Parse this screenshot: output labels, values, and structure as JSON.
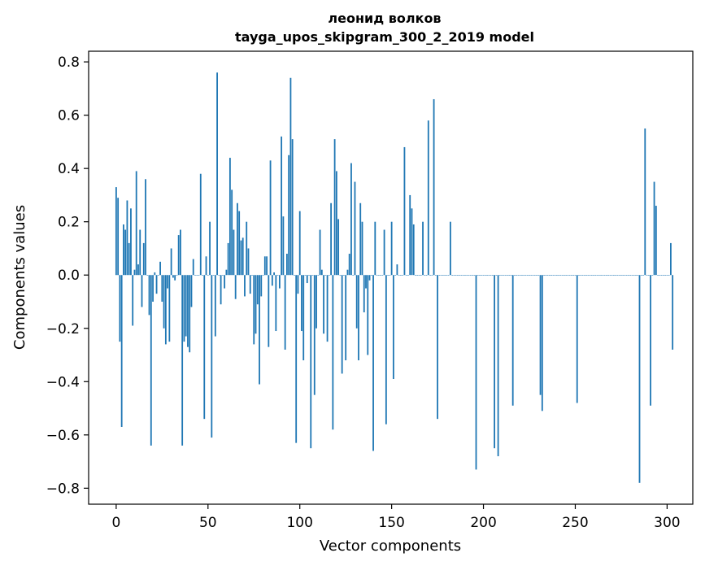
{
  "chart_data": {
    "type": "bar",
    "title": "леонид волков",
    "subtitle": "tayga_upos_skipgram_300_2_2019 model",
    "xlabel": "Vector components",
    "ylabel": "Components values",
    "xlim": [
      -15,
      314
    ],
    "ylim": [
      -0.86,
      0.84
    ],
    "xticks": [
      0,
      50,
      100,
      150,
      200,
      250,
      300
    ],
    "xtick_labels": [
      "0",
      "50",
      "100",
      "150",
      "200",
      "250",
      "300"
    ],
    "yticks": [
      -0.8,
      -0.6,
      -0.4,
      -0.2,
      0.0,
      0.2,
      0.4,
      0.6,
      0.8
    ],
    "ytick_labels": [
      "−0.8",
      "−0.6",
      "−0.4",
      "−0.2",
      "0.0",
      "0.2",
      "0.4",
      "0.6",
      "0.8"
    ],
    "grid": false,
    "bar_color": "#1f77b4",
    "values": [
      0.33,
      0.29,
      -0.25,
      -0.57,
      0.19,
      0.17,
      0.28,
      0.12,
      0.25,
      -0.19,
      0.02,
      0.39,
      0.04,
      0.17,
      -0.12,
      0.12,
      0.36,
      0.0,
      -0.15,
      -0.64,
      -0.1,
      0.01,
      -0.07,
      0.0,
      0.05,
      -0.1,
      -0.2,
      -0.26,
      -0.05,
      -0.25,
      0.1,
      -0.01,
      -0.02,
      0.0,
      0.15,
      0.17,
      -0.64,
      -0.25,
      -0.23,
      -0.27,
      -0.29,
      -0.12,
      0.06,
      0.0,
      0.0,
      0.0,
      0.38,
      0.0,
      -0.54,
      0.07,
      0.0,
      0.2,
      -0.61,
      0.0,
      -0.23,
      0.76,
      0.0,
      -0.11,
      0.0,
      -0.05,
      0.02,
      0.12,
      0.44,
      0.32,
      0.17,
      -0.09,
      0.27,
      0.24,
      0.13,
      0.14,
      -0.08,
      0.2,
      0.1,
      -0.07,
      0.0,
      -0.26,
      -0.22,
      -0.11,
      -0.41,
      -0.08,
      0.0,
      0.07,
      0.07,
      -0.27,
      0.43,
      -0.04,
      0.01,
      -0.21,
      0.0,
      -0.05,
      0.52,
      0.22,
      -0.28,
      0.08,
      0.45,
      0.74,
      0.51,
      0.0,
      -0.63,
      -0.07,
      0.24,
      -0.21,
      -0.32,
      0.0,
      -0.03,
      0.0,
      -0.65,
      0.0,
      -0.45,
      -0.2,
      0.0,
      0.17,
      0.02,
      -0.22,
      0.0,
      -0.25,
      0.0,
      0.27,
      -0.58,
      0.51,
      0.39,
      0.21,
      0.0,
      -0.37,
      0.0,
      -0.32,
      0.02,
      0.08,
      0.42,
      0.0,
      0.35,
      -0.2,
      -0.32,
      0.27,
      0.2,
      -0.14,
      -0.05,
      -0.3,
      -0.02,
      0.0,
      -0.66,
      0.2,
      0.0,
      0.0,
      0.0,
      0.0,
      0.17,
      -0.56,
      0.0,
      0.0,
      0.2,
      -0.39,
      0.0,
      0.04,
      0.0,
      0.0,
      0.0,
      0.48,
      0.0,
      0.0,
      0.3,
      0.25,
      0.19,
      0.0,
      0.0,
      0.0,
      0.0,
      0.2,
      0.0,
      0.0,
      0.58,
      0.0,
      0.0,
      0.66,
      0.0,
      -0.54,
      0.0,
      0.0,
      0.0,
      0.0,
      0.0,
      0.0,
      0.2,
      0.0,
      0.0,
      0.0,
      0.0,
      0.0,
      0.0,
      0.0,
      0.0,
      0.0,
      0.0,
      0.0,
      0.0,
      0.0,
      -0.73,
      0.0,
      0.0,
      0.0,
      0.0,
      0.0,
      0.0,
      0.0,
      0.0,
      0.0,
      -0.65,
      0.0,
      -0.68,
      0.0,
      0.0,
      0.0,
      0.0,
      0.0,
      0.0,
      0.0,
      -0.49,
      0.0,
      0.0,
      0.0,
      0.0,
      0.0,
      0.0,
      0.0,
      0.0,
      0.0,
      0.0,
      0.0,
      0.0,
      0.0,
      0.0,
      -0.45,
      -0.51,
      0.0,
      0.0,
      0.0,
      0.0,
      0.0,
      0.0,
      0.0,
      0.0,
      0.0,
      0.0,
      0.0,
      0.0,
      0.0,
      0.0,
      0.0,
      0.0,
      0.0,
      0.0,
      -0.48,
      0.0,
      0.0,
      0.0,
      0.0,
      0.0,
      0.0,
      0.0,
      0.0,
      0.0,
      0.0,
      0.0,
      0.0,
      0.0,
      0.0,
      0.0,
      0.0,
      0.0,
      0.0,
      0.0,
      0.0,
      0.0,
      0.0,
      0.0,
      0.0,
      0.0,
      0.0,
      0.0,
      0.0,
      0.0,
      0.0,
      0.0,
      0.0,
      0.0,
      -0.78,
      0.0,
      0.0,
      0.55,
      0.0,
      0.0,
      -0.49,
      0.0,
      0.35,
      0.26,
      0.0,
      0.0,
      0.0,
      0.0,
      0.0,
      0.0,
      0.0,
      0.12,
      -0.28
    ]
  }
}
